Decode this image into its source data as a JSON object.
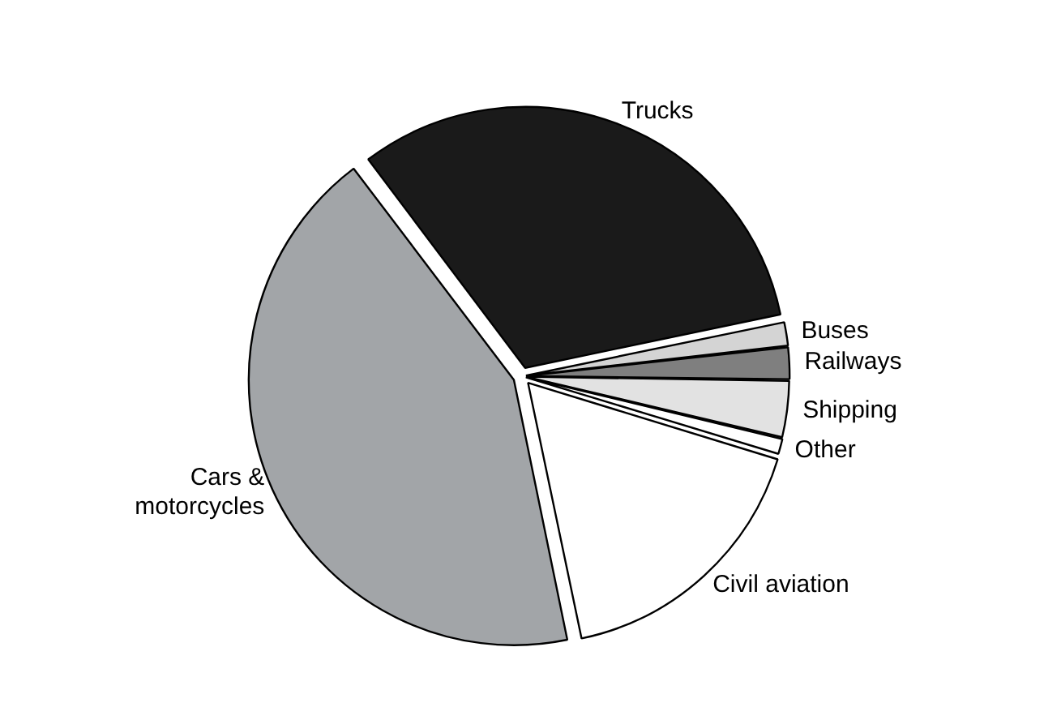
{
  "chart_data": {
    "type": "pie",
    "categories": [
      "Trucks",
      "Buses",
      "Railways",
      "Shipping",
      "Other",
      "Civil aviation",
      "Cars & motorcycles"
    ],
    "values": [
      32,
      1.5,
      2,
      3.5,
      1,
      17,
      43
    ],
    "colors": [
      "#1a1a1a",
      "#d4d4d4",
      "#7f7f7f",
      "#e2e2e2",
      "#ffffff",
      "#ffffff",
      "#a2a5a8"
    ],
    "legend": false
  }
}
